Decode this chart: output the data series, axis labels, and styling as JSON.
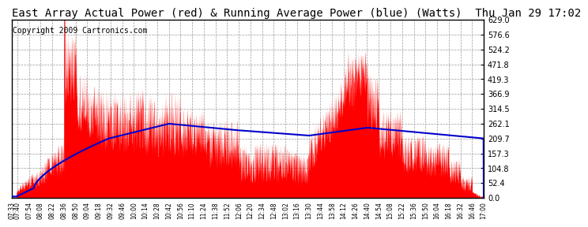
{
  "title": "East Array Actual Power (red) & Running Average Power (blue) (Watts)  Thu Jan 29 17:02",
  "copyright": "Copyright 2009 Cartronics.com",
  "ymin": 0.0,
  "ymax": 629.0,
  "ytick_values": [
    0.0,
    52.4,
    104.8,
    157.3,
    209.7,
    262.1,
    314.5,
    366.9,
    419.3,
    471.8,
    524.2,
    576.6,
    629.0
  ],
  "actual_color": "#ff0000",
  "average_color": "#0000cc",
  "background_color": "#ffffff",
  "grid_color": "#999999",
  "title_fontsize": 10,
  "copyright_fontsize": 7,
  "x_tick_labels": [
    "07:33",
    "07:40",
    "07:54",
    "08:08",
    "08:22",
    "08:36",
    "08:50",
    "09:04",
    "09:18",
    "09:32",
    "09:46",
    "10:00",
    "10:14",
    "10:28",
    "10:42",
    "10:56",
    "11:10",
    "11:24",
    "11:38",
    "11:52",
    "12:06",
    "12:20",
    "12:34",
    "12:48",
    "13:02",
    "13:16",
    "13:30",
    "13:44",
    "13:58",
    "14:12",
    "14:26",
    "14:40",
    "14:54",
    "15:08",
    "15:22",
    "15:36",
    "15:50",
    "16:04",
    "16:18",
    "16:32",
    "16:46",
    "17:00"
  ]
}
